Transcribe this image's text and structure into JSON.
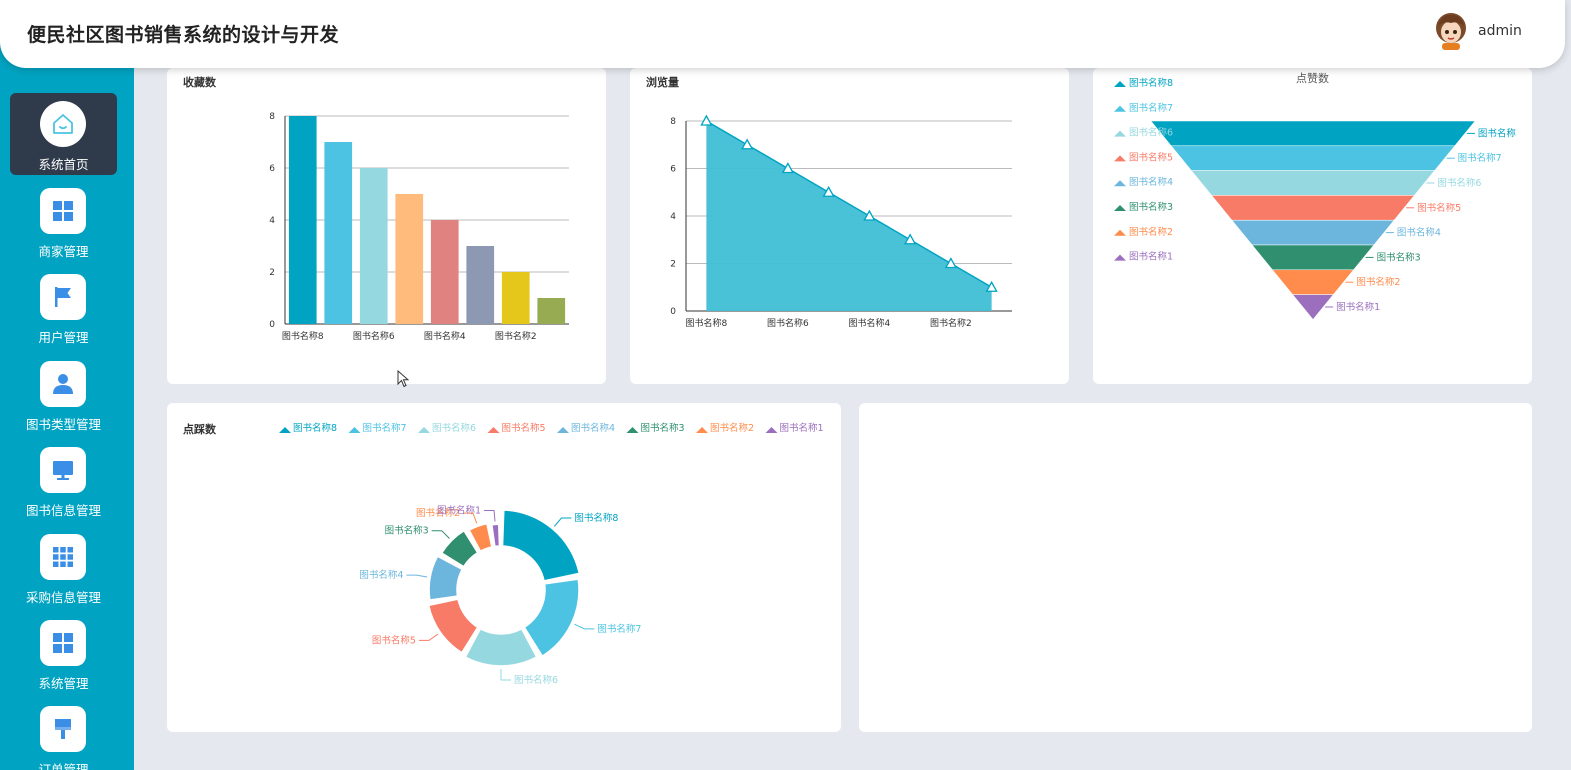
{
  "header": {
    "title": "便民社区图书销售系统的设计与开发",
    "username": "admin"
  },
  "sidebar": {
    "items": [
      {
        "label": "系统首页",
        "icon": "home-icon",
        "active": true
      },
      {
        "label": "商家管理",
        "icon": "grid-icon"
      },
      {
        "label": "用户管理",
        "icon": "flag-icon"
      },
      {
        "label": "图书类型管理",
        "icon": "user-icon"
      },
      {
        "label": "图书信息管理",
        "icon": "monitor-icon"
      },
      {
        "label": "采购信息管理",
        "icon": "apps-grid-icon"
      },
      {
        "label": "系统管理",
        "icon": "grid-icon"
      },
      {
        "label": "订单管理",
        "icon": "brush-icon"
      }
    ]
  },
  "charts": {
    "favorites_title": "收藏数",
    "views_title": "浏览量",
    "likes_title": "点赞数",
    "dislikes_title": "点踩数"
  },
  "colors": {
    "accent": "#00a4c2",
    "sidebar_active": "#2f3a4a"
  },
  "chart_data": [
    {
      "type": "bar",
      "title": "收藏数",
      "categories": [
        "图书名称8",
        "图书名称7",
        "图书名称6",
        "图书名称5",
        "图书名称4",
        "图书名称3",
        "图书名称2",
        "图书名称1"
      ],
      "tick_labels": [
        "图书名称8",
        "图书名称6",
        "图书名称4",
        "图书名称2"
      ],
      "values": [
        8,
        7,
        6,
        5,
        4,
        3,
        2,
        1
      ],
      "yticks": [
        0,
        2,
        4,
        6,
        8
      ],
      "ylim": [
        0,
        8
      ],
      "colors": [
        "#00a4c2",
        "#4dc3e3",
        "#96d8e0",
        "#ffbb7c",
        "#e0827f",
        "#8d98b3",
        "#e5c61a",
        "#96ab52"
      ],
      "grid": true
    },
    {
      "type": "area",
      "title": "浏览量",
      "categories": [
        "图书名称8",
        "图书名称7",
        "图书名称6",
        "图书名称5",
        "图书名称4",
        "图书名称3",
        "图书名称2",
        "图书名称1"
      ],
      "tick_labels": [
        "图书名称8",
        "图书名称6",
        "图书名称4",
        "图书名称2"
      ],
      "values": [
        8,
        7,
        6,
        5,
        4,
        3,
        2,
        1
      ],
      "yticks": [
        0,
        2,
        4,
        6,
        8
      ],
      "ylim": [
        0,
        8
      ],
      "grid": true
    },
    {
      "type": "funnel",
      "title": "点赞数",
      "legend_position": "left",
      "series": [
        {
          "name": "图书名称8",
          "value": 8,
          "color": "#00a4c2"
        },
        {
          "name": "图书名称7",
          "value": 7,
          "color": "#4dc3e3"
        },
        {
          "name": "图书名称6",
          "value": 6,
          "color": "#96d8e0"
        },
        {
          "name": "图书名称5",
          "value": 5,
          "color": "#f87b67"
        },
        {
          "name": "图书名称4",
          "value": 4,
          "color": "#6cb6dd"
        },
        {
          "name": "图书名称3",
          "value": 3,
          "color": "#2f8f6f"
        },
        {
          "name": "图书名称2",
          "value": 2,
          "color": "#ff8c4c"
        },
        {
          "name": "图书名称1",
          "value": 1,
          "color": "#9b6fbd"
        }
      ],
      "outside_labels": [
        "图书名称",
        "图书名称7",
        "图书名称6",
        "图书名称5",
        "图书名称4",
        "图书名称3",
        "图书名称2",
        "图书名称1"
      ]
    },
    {
      "type": "pie",
      "title": "点踩数",
      "legend_position": "top",
      "series": [
        {
          "name": "图书名称8",
          "value": 8,
          "color": "#00a4c2"
        },
        {
          "name": "图书名称7",
          "value": 7,
          "color": "#4dc3e3"
        },
        {
          "name": "图书名称6",
          "value": 6,
          "color": "#96d8e0"
        },
        {
          "name": "图书名称5",
          "value": 5,
          "color": "#f87b67"
        },
        {
          "name": "图书名称4",
          "value": 4,
          "color": "#6cb6dd"
        },
        {
          "name": "图书名称3",
          "value": 3,
          "color": "#2f8f6f"
        },
        {
          "name": "图书名称2",
          "value": 2,
          "color": "#ff8c4c"
        },
        {
          "name": "图书名称1",
          "value": 1,
          "color": "#9b6fbd"
        }
      ]
    }
  ]
}
